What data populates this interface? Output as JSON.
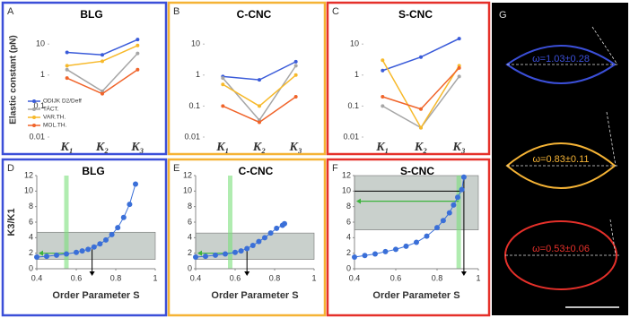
{
  "chart_data": [
    {
      "type": "line",
      "panel_label": "A",
      "title": "BLG",
      "y_label": "Elastic constant (pN)",
      "border_color": "#3b4fd8",
      "log_scale": true,
      "legend": "lower-left",
      "categories": [
        "K₁",
        "K₂",
        "K₃"
      ],
      "ylim": [
        0.01,
        50
      ],
      "yticks": [
        0.01,
        0.1,
        1,
        10
      ],
      "series": [
        {
          "name": "ODIJK D2/Deff",
          "color": "#3a5bd9",
          "values": [
            5.4,
            4.5,
            14
          ]
        },
        {
          "name": "TACT.",
          "color": "#a6a6a6",
          "values": [
            1.5,
            0.3,
            5
          ]
        },
        {
          "name": "VAR.TH.",
          "color": "#f7b92a",
          "values": [
            2,
            2.8,
            9
          ]
        },
        {
          "name": "MOL.TH.",
          "color": "#f0642a",
          "values": [
            0.8,
            0.25,
            1.5
          ]
        }
      ]
    },
    {
      "type": "line",
      "panel_label": "B",
      "title": "C-CNC",
      "border_color": "#f5b335",
      "log_scale": true,
      "categories": [
        "K₁",
        "K₂",
        "K₃"
      ],
      "ylim": [
        0.01,
        50
      ],
      "yticks": [
        0.01,
        0.1,
        1,
        10
      ],
      "series": [
        {
          "color": "#3a5bd9",
          "values": [
            0.9,
            0.7,
            2.7
          ]
        },
        {
          "color": "#a6a6a6",
          "values": [
            0.8,
            0.035,
            2
          ]
        },
        {
          "color": "#f7b92a",
          "values": [
            0.5,
            0.1,
            1
          ]
        },
        {
          "color": "#f0642a",
          "values": [
            0.1,
            0.03,
            0.2
          ]
        }
      ]
    },
    {
      "type": "line",
      "panel_label": "C",
      "title": "S-CNC",
      "border_color": "#e5302a",
      "log_scale": true,
      "categories": [
        "K₁",
        "K₂",
        "K₃"
      ],
      "ylim": [
        0.01,
        50
      ],
      "yticks": [
        0.01,
        0.1,
        1,
        10
      ],
      "series": [
        {
          "color": "#3a5bd9",
          "values": [
            1.4,
            3.8,
            15
          ]
        },
        {
          "color": "#a6a6a6",
          "values": [
            0.1,
            0.02,
            0.9
          ]
        },
        {
          "color": "#f7b92a",
          "values": [
            3,
            0.02,
            2
          ]
        },
        {
          "color": "#f0642a",
          "values": [
            0.2,
            0.08,
            1.7
          ]
        }
      ]
    },
    {
      "type": "scatter",
      "panel_label": "D",
      "title": "BLG",
      "y_label": "K3/K1",
      "x_label": "Order Parameter S",
      "border_color": "#3b4fd8",
      "xlim": [
        0.4,
        1
      ],
      "xticks": [
        0.4,
        0.6,
        0.8,
        1
      ],
      "ylim": [
        0,
        12
      ],
      "yticks": [
        0,
        2,
        4,
        6,
        8,
        10,
        12
      ],
      "shaded_range": [
        1.2,
        4.7
      ],
      "highlight_s": 0.55,
      "arrow_s": 0.68,
      "green_arrow_y": 2,
      "x": [
        0.4,
        0.45,
        0.5,
        0.55,
        0.6,
        0.63,
        0.66,
        0.69,
        0.72,
        0.75,
        0.78,
        0.81,
        0.84,
        0.87,
        0.9
      ],
      "values": [
        1.5,
        1.6,
        1.75,
        1.9,
        2.1,
        2.3,
        2.5,
        2.8,
        3.2,
        3.7,
        4.4,
        5.3,
        6.6,
        8.3,
        10.9
      ],
      "color": "#3a6fd8"
    },
    {
      "type": "scatter",
      "panel_label": "E",
      "title": "C-CNC",
      "x_label": "Order Parameter S",
      "border_color": "#f5b335",
      "xlim": [
        0.4,
        1
      ],
      "xticks": [
        0.4,
        0.6,
        0.8,
        1
      ],
      "ylim": [
        0,
        12
      ],
      "yticks": [
        0,
        2,
        4,
        6,
        8,
        10,
        12
      ],
      "shaded_range": [
        1.2,
        4.6
      ],
      "highlight_s": 0.575,
      "arrow_s": 0.66,
      "green_arrow_y": 2,
      "x": [
        0.4,
        0.45,
        0.5,
        0.55,
        0.6,
        0.63,
        0.66,
        0.69,
        0.72,
        0.75,
        0.78,
        0.81,
        0.84,
        0.85
      ],
      "values": [
        1.5,
        1.6,
        1.75,
        1.9,
        2.1,
        2.3,
        2.6,
        3.0,
        3.5,
        4.0,
        4.6,
        5.2,
        5.6,
        5.8
      ],
      "color": "#3a6fd8"
    },
    {
      "type": "scatter",
      "panel_label": "F",
      "title": "S-CNC",
      "x_label": "Order Parameter S",
      "border_color": "#e5302a",
      "xlim": [
        0.4,
        1
      ],
      "xticks": [
        0.4,
        0.6,
        0.8,
        1
      ],
      "ylim": [
        0,
        12
      ],
      "yticks": [
        0,
        2,
        4,
        6,
        8,
        10,
        12
      ],
      "shaded_range": [
        5,
        12
      ],
      "highlight_s": 0.905,
      "arrow_s": 0.93,
      "green_arrow_y": 8.7,
      "black_line_y": 10,
      "x": [
        0.4,
        0.45,
        0.5,
        0.55,
        0.6,
        0.65,
        0.7,
        0.75,
        0.8,
        0.83,
        0.86,
        0.88,
        0.9,
        0.92,
        0.93
      ],
      "values": [
        1.5,
        1.7,
        1.9,
        2.2,
        2.5,
        2.9,
        3.4,
        4.2,
        5.3,
        6.2,
        7.2,
        8.2,
        9.2,
        10.2,
        11.8
      ],
      "color": "#3a6fd8"
    }
  ],
  "image_panel": {
    "label": "G",
    "annotations": [
      "ω=1.03±0.28",
      "ω=0.83±0.11",
      "ω=0.53±0.06"
    ]
  }
}
